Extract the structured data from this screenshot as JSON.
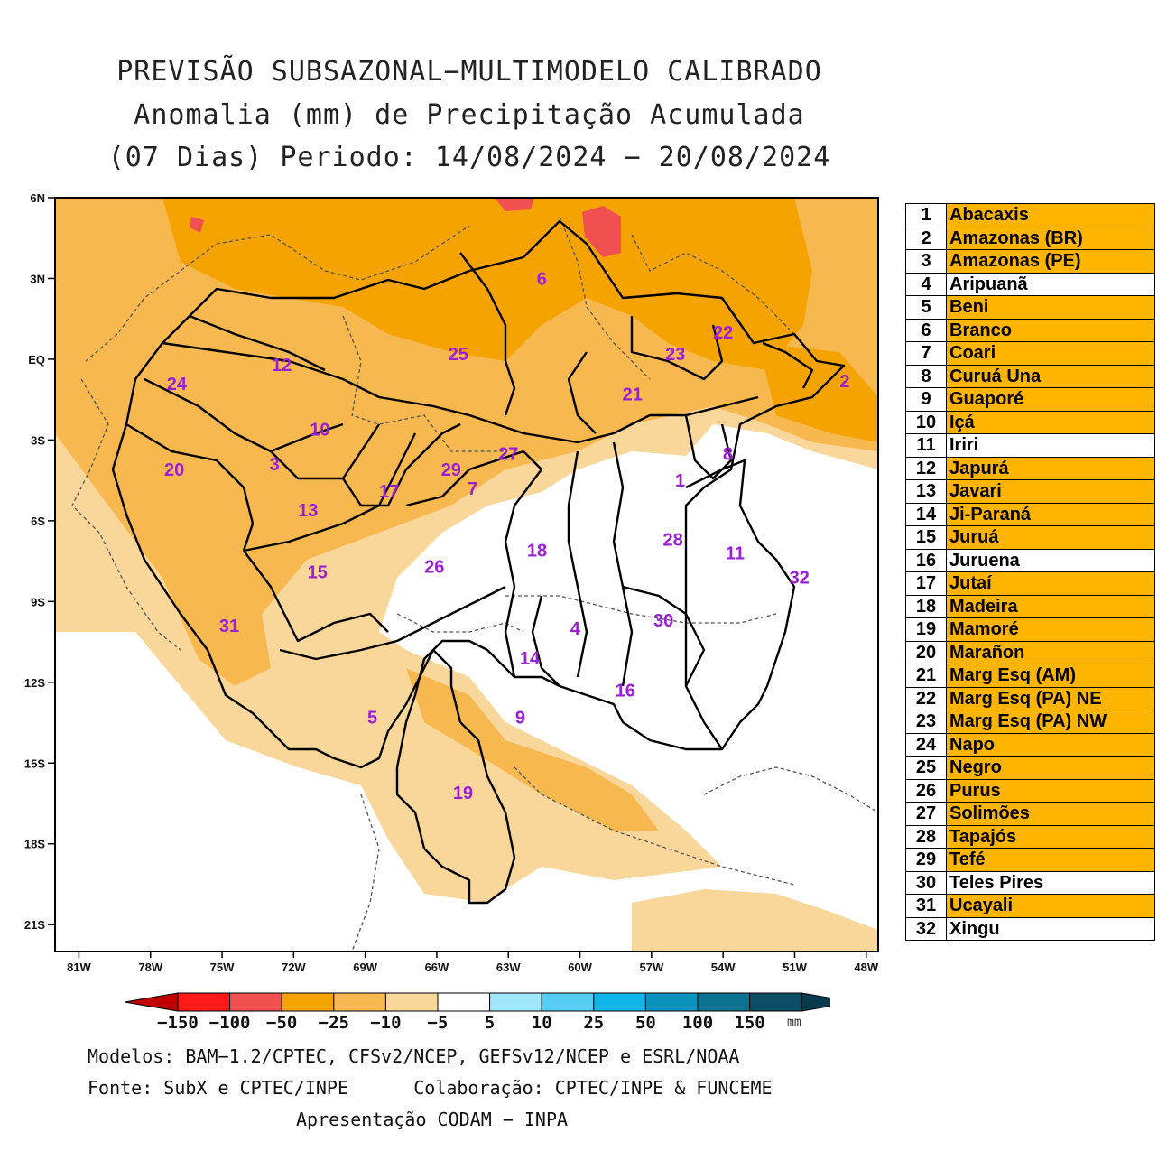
{
  "title": {
    "line1": "PREVISÃO SUBSAZONAL−MULTIMODELO CALIBRADO",
    "line2": "Anomalia (mm) de Precipitação Acumulada",
    "line3": "(07 Dias) Periodo: 14/08/2024 − 20/08/2024"
  },
  "map": {
    "lat_labels": [
      "6N",
      "3N",
      "EQ",
      "3S",
      "6S",
      "9S",
      "12S",
      "15S",
      "18S",
      "21S"
    ],
    "lon_labels": [
      "81W",
      "78W",
      "75W",
      "72W",
      "69W",
      "66W",
      "63W",
      "60W",
      "57W",
      "54W",
      "51W",
      "48W"
    ],
    "basin_labels": [
      {
        "id": "1",
        "lon": -55.8,
        "lat": -4.5
      },
      {
        "id": "2",
        "lon": -48.9,
        "lat": -0.8
      },
      {
        "id": "3",
        "lon": -72.8,
        "lat": -3.9
      },
      {
        "id": "4",
        "lon": -60.2,
        "lat": -10.0
      },
      {
        "id": "5",
        "lon": -68.7,
        "lat": -13.3
      },
      {
        "id": "6",
        "lon": -61.6,
        "lat": 3.0
      },
      {
        "id": "7",
        "lon": -64.5,
        "lat": -4.8
      },
      {
        "id": "8",
        "lon": -53.8,
        "lat": -3.5
      },
      {
        "id": "9",
        "lon": -62.5,
        "lat": -13.3
      },
      {
        "id": "10",
        "lon": -70.9,
        "lat": -2.6
      },
      {
        "id": "11",
        "lon": -53.5,
        "lat": -7.2
      },
      {
        "id": "12",
        "lon": -72.5,
        "lat": -0.2
      },
      {
        "id": "13",
        "lon": -71.4,
        "lat": -5.6
      },
      {
        "id": "14",
        "lon": -62.1,
        "lat": -11.1
      },
      {
        "id": "15",
        "lon": -71.0,
        "lat": -7.9
      },
      {
        "id": "16",
        "lon": -58.1,
        "lat": -12.3
      },
      {
        "id": "17",
        "lon": -68.0,
        "lat": -4.9
      },
      {
        "id": "18",
        "lon": -61.8,
        "lat": -7.1
      },
      {
        "id": "19",
        "lon": -64.9,
        "lat": -16.1
      },
      {
        "id": "20",
        "lon": -77.0,
        "lat": -4.1
      },
      {
        "id": "21",
        "lon": -57.8,
        "lat": -1.3
      },
      {
        "id": "22",
        "lon": -54.0,
        "lat": 1.0
      },
      {
        "id": "23",
        "lon": -56.0,
        "lat": 0.2
      },
      {
        "id": "24",
        "lon": -76.9,
        "lat": -0.9
      },
      {
        "id": "25",
        "lon": -65.1,
        "lat": 0.2
      },
      {
        "id": "26",
        "lon": -66.1,
        "lat": -7.7
      },
      {
        "id": "27",
        "lon": -63.0,
        "lat": -3.5
      },
      {
        "id": "28",
        "lon": -56.1,
        "lat": -6.7
      },
      {
        "id": "29",
        "lon": -65.4,
        "lat": -4.1
      },
      {
        "id": "30",
        "lon": -56.5,
        "lat": -9.7
      },
      {
        "id": "31",
        "lon": -74.7,
        "lat": -9.9
      },
      {
        "id": "32",
        "lon": -50.8,
        "lat": -8.1
      }
    ]
  },
  "legend": [
    {
      "num": "1",
      "name": "Abacaxis",
      "color": "#ffb400"
    },
    {
      "num": "2",
      "name": "Amazonas (BR)",
      "color": "#ffb400"
    },
    {
      "num": "3",
      "name": "Amazonas (PE)",
      "color": "#ffb400"
    },
    {
      "num": "4",
      "name": "Aripuanã",
      "color": "#ffffff"
    },
    {
      "num": "5",
      "name": "Beni",
      "color": "#ffb400"
    },
    {
      "num": "6",
      "name": "Branco",
      "color": "#ffb400"
    },
    {
      "num": "7",
      "name": "Coari",
      "color": "#ffb400"
    },
    {
      "num": "8",
      "name": "Curuá Una",
      "color": "#ffb400"
    },
    {
      "num": "9",
      "name": "Guaporé",
      "color": "#ffb400"
    },
    {
      "num": "10",
      "name": "Içá",
      "color": "#ffb400"
    },
    {
      "num": "11",
      "name": "Iriri",
      "color": "#ffffff"
    },
    {
      "num": "12",
      "name": "Japurá",
      "color": "#ffb400"
    },
    {
      "num": "13",
      "name": "Javari",
      "color": "#ffb400"
    },
    {
      "num": "14",
      "name": "Ji-Paraná",
      "color": "#ffb400"
    },
    {
      "num": "15",
      "name": "Juruá",
      "color": "#ffb400"
    },
    {
      "num": "16",
      "name": "Juruena",
      "color": "#ffffff"
    },
    {
      "num": "17",
      "name": "Jutaí",
      "color": "#ffb400"
    },
    {
      "num": "18",
      "name": "Madeira",
      "color": "#ffb400"
    },
    {
      "num": "19",
      "name": "Mamoré",
      "color": "#ffb400"
    },
    {
      "num": "20",
      "name": "Marañon",
      "color": "#ffb400"
    },
    {
      "num": "21",
      "name": "Marg Esq (AM)",
      "color": "#ffb400"
    },
    {
      "num": "22",
      "name": "Marg Esq (PA) NE",
      "color": "#ffb400"
    },
    {
      "num": "23",
      "name": "Marg Esq (PA) NW",
      "color": "#ffb400"
    },
    {
      "num": "24",
      "name": "Napo",
      "color": "#ffb400"
    },
    {
      "num": "25",
      "name": "Negro",
      "color": "#ffb400"
    },
    {
      "num": "26",
      "name": "Purus",
      "color": "#ffb400"
    },
    {
      "num": "27",
      "name": "Solimões",
      "color": "#ffb400"
    },
    {
      "num": "28",
      "name": "Tapajós",
      "color": "#ffb400"
    },
    {
      "num": "29",
      "name": "Tefé",
      "color": "#ffb400"
    },
    {
      "num": "30",
      "name": "Teles Pires",
      "color": "#ffffff"
    },
    {
      "num": "31",
      "name": "Ucayali",
      "color": "#ffb400"
    },
    {
      "num": "32",
      "name": "Xingu",
      "color": "#ffffff"
    }
  ],
  "colorbar": {
    "labels": [
      "−150",
      "−100",
      "−50",
      "−25",
      "−10",
      "−5",
      "5",
      "10",
      "25",
      "50",
      "100",
      "150"
    ],
    "unit": "mm",
    "colors": [
      "#c00000",
      "#ff1a1a",
      "#f05050",
      "#f5a300",
      "#f7b850",
      "#f9d79a",
      "#ffffff",
      "#9fe6fa",
      "#55cdf3",
      "#10b6ea",
      "#0a93bd",
      "#0b7290",
      "#0b4e66",
      "#073a4c"
    ]
  },
  "footer": {
    "line1": "Modelos: BAM−1.2/CPTEC, CFSv2/NCEP, GEFSv12/NCEP e ESRL/NOAA",
    "line2": "Fonte: SubX e CPTEC/INPE      Colaboração: CPTEC/INPE & FUNCEME",
    "line3": "Apresentação CODAM − INPA"
  }
}
